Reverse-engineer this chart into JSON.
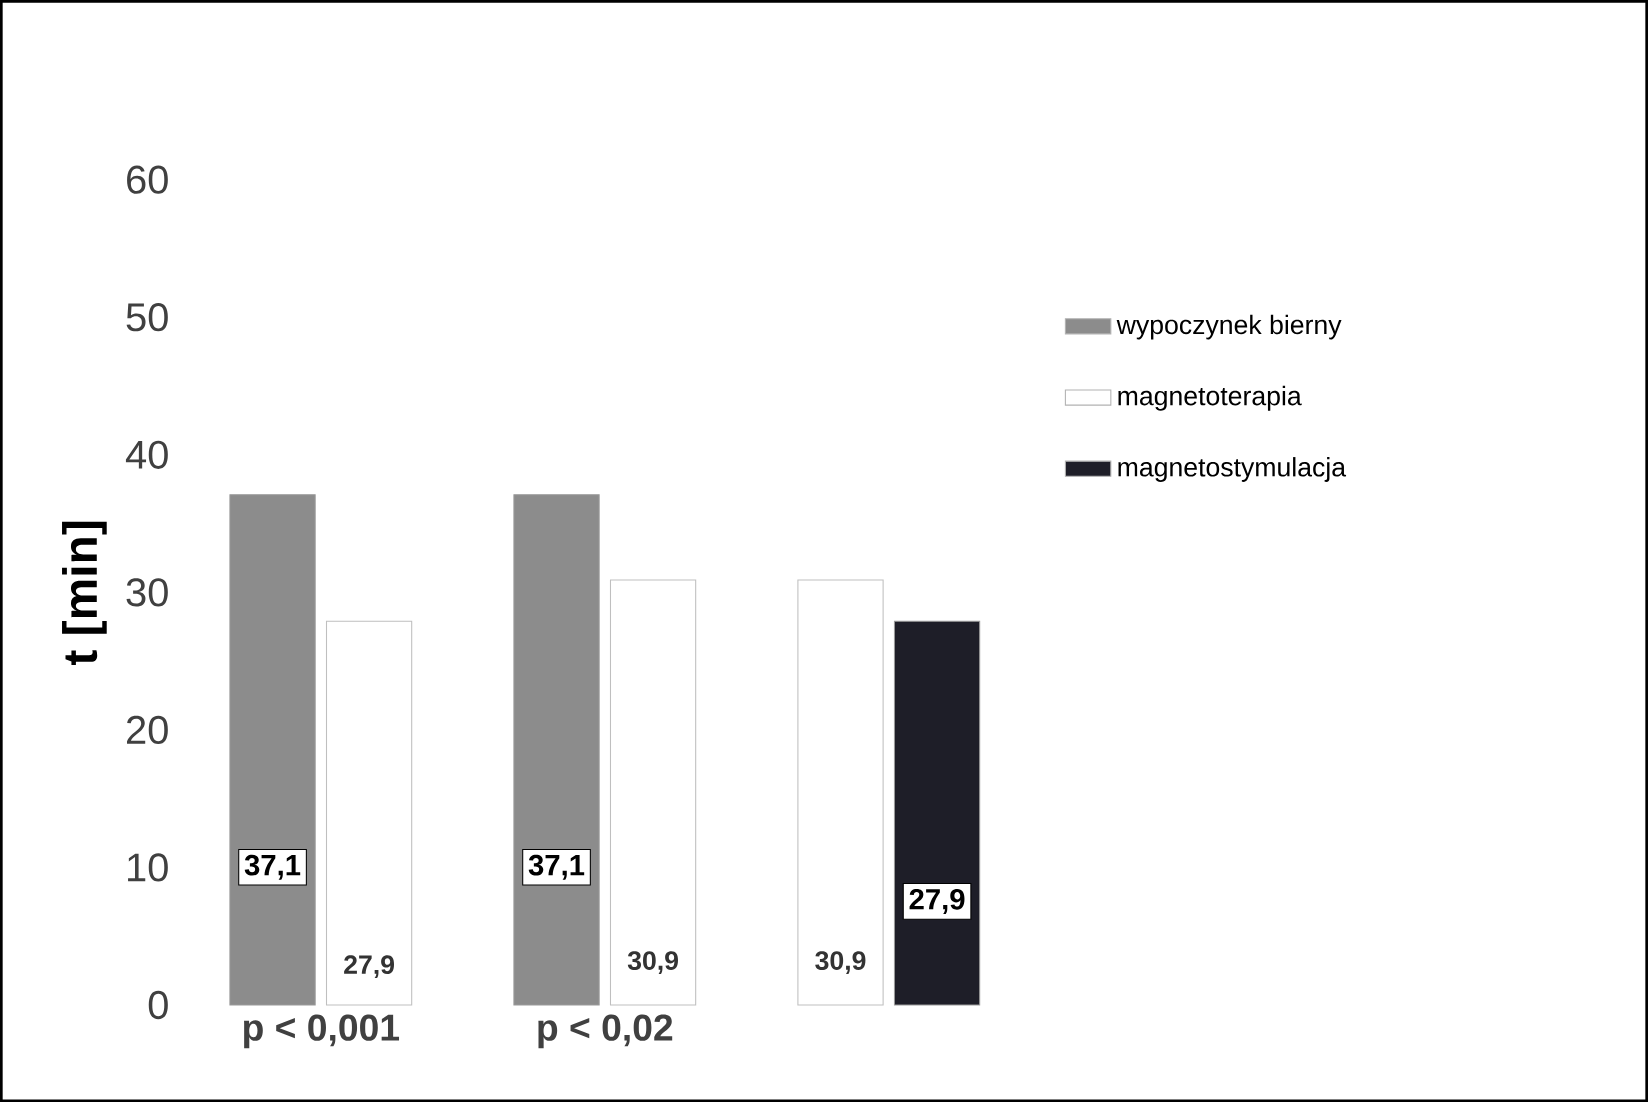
{
  "chart_data": {
    "type": "bar",
    "ylabel": "t [min]",
    "categories": [
      "p < 0,001",
      "p < 0,02",
      null
    ],
    "series": [
      {
        "name": "wypoczynek bierny",
        "color": "#8c8c8c",
        "values": [
          37.1,
          37.1,
          null
        ],
        "value_labels": [
          "37,1",
          "37,1",
          null
        ]
      },
      {
        "name": "magnetoterapia",
        "color": "#ffffff",
        "values": [
          27.9,
          30.9,
          30.9
        ],
        "value_labels": [
          "27,9",
          "30,9",
          "30,9"
        ]
      },
      {
        "name": "magnetostymulacja",
        "color": "#1e1e28",
        "values": [
          null,
          null,
          27.9
        ],
        "value_labels": [
          null,
          null,
          "27,9"
        ]
      }
    ],
    "ylim": [
      0,
      60
    ],
    "yticks": [
      0,
      10,
      20,
      30,
      40,
      50,
      60
    ],
    "legend": "right"
  }
}
